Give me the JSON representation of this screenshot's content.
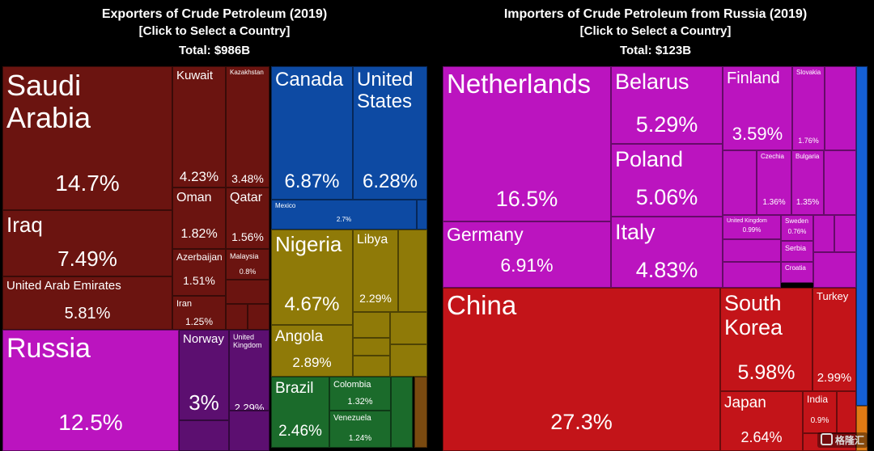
{
  "left": {
    "title": "Exporters of Crude Petroleum (2019)",
    "subtitle": "[Click to Select a Country]",
    "total": "Total: $986B"
  },
  "right": {
    "title": "Importers of Crude Petroleum from Russia (2019)",
    "subtitle": "[Click to Select a Country]",
    "total": "Total: $123B"
  },
  "watermark": "格隆汇",
  "colors": {
    "middle_east": "#6b1410",
    "europe": "#bb14bf",
    "americas": "#0d4aa3",
    "africa": "#8f7a08",
    "south_america": "#1b6b2b",
    "asia": "#c31419",
    "europe_dark": "#5c0f70"
  },
  "chart_data": [
    {
      "type": "treemap",
      "title": "Exporters of Crude Petroleum (2019)",
      "total": "$986B",
      "items": [
        {
          "name": "Saudi Arabia",
          "value": "14.7%"
        },
        {
          "name": "Iraq",
          "value": "7.49%"
        },
        {
          "name": "United Arab Emirates",
          "value": "5.81%"
        },
        {
          "name": "Kuwait",
          "value": "4.23%"
        },
        {
          "name": "Kazakhstan",
          "value": "3.48%"
        },
        {
          "name": "Oman",
          "value": "1.82%"
        },
        {
          "name": "Qatar",
          "value": "1.56%"
        },
        {
          "name": "Azerbaijan",
          "value": "1.51%"
        },
        {
          "name": "Malaysia",
          "value": "0.8%"
        },
        {
          "name": "Iran",
          "value": "1.25%"
        },
        {
          "name": "Russia",
          "value": "12.5%"
        },
        {
          "name": "Norway",
          "value": "3%"
        },
        {
          "name": "United Kingdom",
          "value": "2.29%"
        },
        {
          "name": "Canada",
          "value": "6.87%"
        },
        {
          "name": "United States",
          "value": "6.28%"
        },
        {
          "name": "Mexico",
          "value": "2.7%"
        },
        {
          "name": "Nigeria",
          "value": "4.67%"
        },
        {
          "name": "Libya",
          "value": "2.29%"
        },
        {
          "name": "Angola",
          "value": "2.89%"
        },
        {
          "name": "Brazil",
          "value": "2.46%"
        },
        {
          "name": "Colombia",
          "value": "1.32%"
        },
        {
          "name": "Venezuela",
          "value": "1.24%"
        }
      ]
    },
    {
      "type": "treemap",
      "title": "Importers of Crude Petroleum from Russia (2019)",
      "total": "$123B",
      "items": [
        {
          "name": "Netherlands",
          "value": "16.5%"
        },
        {
          "name": "Belarus",
          "value": "5.29%"
        },
        {
          "name": "Poland",
          "value": "5.06%"
        },
        {
          "name": "Germany",
          "value": "6.91%"
        },
        {
          "name": "Italy",
          "value": "4.83%"
        },
        {
          "name": "Finland",
          "value": "3.59%"
        },
        {
          "name": "Slovakia",
          "value": "1.76%"
        },
        {
          "name": "Czechia",
          "value": "1.36%"
        },
        {
          "name": "Bulgaria",
          "value": "1.35%"
        },
        {
          "name": "United Kingdom",
          "value": "0.99%"
        },
        {
          "name": "Sweden",
          "value": "0.76%"
        },
        {
          "name": "Serbia",
          "value": ""
        },
        {
          "name": "Croatia",
          "value": ""
        },
        {
          "name": "China",
          "value": "27.3%"
        },
        {
          "name": "South Korea",
          "value": "5.98%"
        },
        {
          "name": "Turkey",
          "value": "2.99%"
        },
        {
          "name": "Japan",
          "value": "2.64%"
        },
        {
          "name": "India",
          "value": "0.9%"
        }
      ]
    }
  ]
}
